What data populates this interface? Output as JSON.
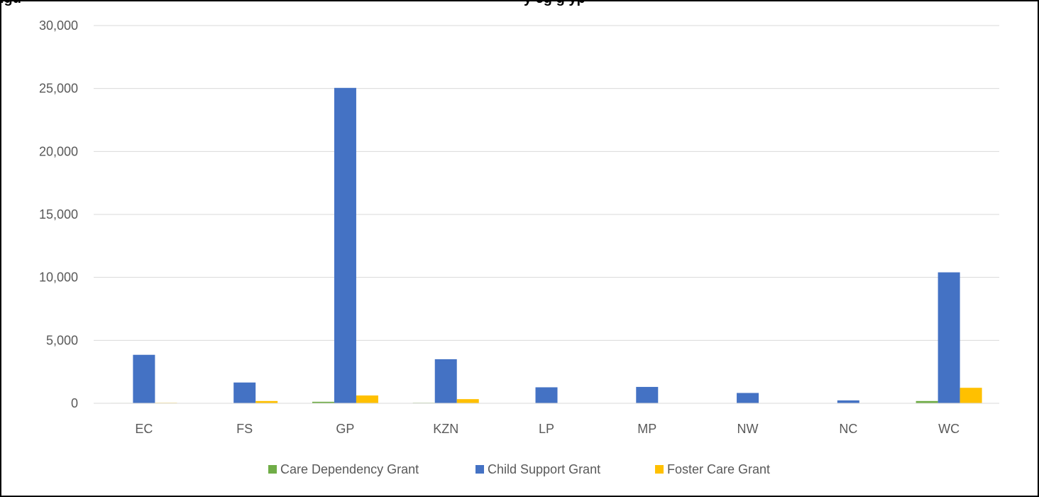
{
  "title_fragments": {
    "left": "igu",
    "right": "y eg    g     yp"
  },
  "chart_data": {
    "type": "bar",
    "categories": [
      "EC",
      "FS",
      "GP",
      "KZN",
      "LP",
      "MP",
      "NW",
      "NC",
      "WC"
    ],
    "series": [
      {
        "name": "Care Dependency Grant",
        "color": "#70ad47",
        "values": [
          30,
          10,
          120,
          40,
          5,
          5,
          5,
          5,
          180
        ]
      },
      {
        "name": "Child Support Grant",
        "color": "#4472c4",
        "values": [
          3850,
          1650,
          25050,
          3500,
          1270,
          1300,
          820,
          230,
          10400
        ]
      },
      {
        "name": "Foster Care Grant",
        "color": "#ffc000",
        "values": [
          40,
          180,
          620,
          330,
          20,
          25,
          20,
          10,
          1230
        ]
      }
    ],
    "yticks": [
      "0",
      "5,000",
      "10,000",
      "15,000",
      "20,000",
      "25,000",
      "30,000"
    ],
    "ylim": [
      0,
      30000
    ],
    "grid": true,
    "legend_position": "bottom"
  }
}
